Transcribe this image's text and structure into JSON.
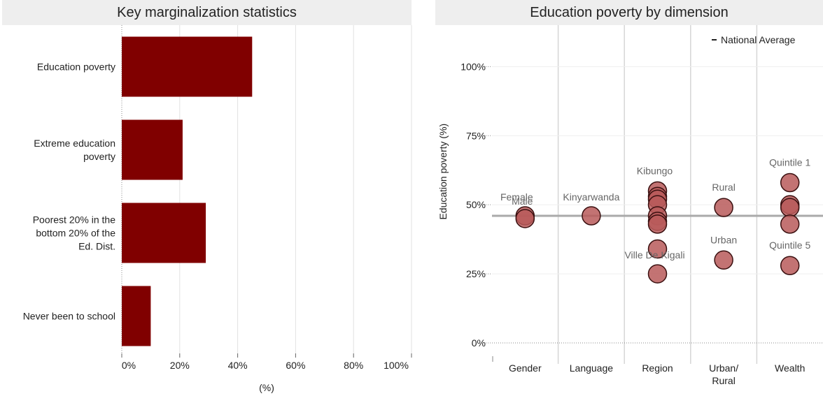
{
  "left_panel": {
    "title": "Key marginalization statistics"
  },
  "right_panel": {
    "title": "Education poverty by dimension"
  },
  "colors": {
    "bar": "#800000",
    "bubble_fill": "#b85a5a",
    "bubble_stroke": "#3a1010",
    "avg_line": "#aaaaaa",
    "grid": "#e2e2e2",
    "title_bg": "#eeeeee"
  },
  "chart_data": [
    {
      "type": "bar",
      "orientation": "horizontal",
      "title": "Key marginalization statistics",
      "categories": [
        "Education poverty",
        "Extreme education poverty",
        "Poorest 20% in the bottom 20% of the Ed. Dist.",
        "Never been to school"
      ],
      "category_label_lines": [
        [
          "Education poverty"
        ],
        [
          "Extreme education",
          "poverty"
        ],
        [
          "Poorest 20% in the",
          "bottom 20% of the",
          "Ed. Dist."
        ],
        [
          "Never been to school"
        ]
      ],
      "values": [
        45,
        21,
        29,
        10
      ],
      "xlim": [
        0,
        100
      ],
      "ticks": [
        0,
        20,
        40,
        60,
        80,
        100
      ],
      "tick_labels": [
        "0%",
        "20%",
        "40%",
        "60%",
        "80%",
        "100%"
      ],
      "xlabel": "(%)",
      "grid": true
    },
    {
      "type": "scatter",
      "title": "Education poverty by dimension",
      "ylabel": "Education poverty (%)",
      "ylim": [
        0,
        115
      ],
      "yticks": [
        0,
        25,
        50,
        75,
        100
      ],
      "ytick_labels": [
        "0%",
        "25%",
        "50%",
        "75%",
        "100%"
      ],
      "categories": [
        "Gender",
        "Language",
        "Region",
        "Urban/\nRural",
        "Wealth"
      ],
      "category_label_lines": [
        [
          "Gender"
        ],
        [
          "Language"
        ],
        [
          "Region"
        ],
        [
          "Urban/",
          "Rural"
        ],
        [
          "Wealth"
        ]
      ],
      "national_average": 46,
      "legend": {
        "label": "National Average",
        "position": "top-right"
      },
      "points": [
        {
          "category": 0,
          "value": 46,
          "label": "Female"
        },
        {
          "category": 0,
          "value": 45,
          "label": "Male"
        },
        {
          "category": 1,
          "value": 46,
          "label": "Kinyarwanda"
        },
        {
          "category": 2,
          "value": 55,
          "label": "Kibungo"
        },
        {
          "category": 2,
          "value": 53,
          "label": ""
        },
        {
          "category": 2,
          "value": 52,
          "label": ""
        },
        {
          "category": 2,
          "value": 50,
          "label": ""
        },
        {
          "category": 2,
          "value": 46,
          "label": ""
        },
        {
          "category": 2,
          "value": 44,
          "label": ""
        },
        {
          "category": 2,
          "value": 43,
          "label": ""
        },
        {
          "category": 2,
          "value": 34,
          "label": ""
        },
        {
          "category": 2,
          "value": 25,
          "label": "Ville De Kigali"
        },
        {
          "category": 3,
          "value": 49,
          "label": "Rural"
        },
        {
          "category": 3,
          "value": 30,
          "label": "Urban"
        },
        {
          "category": 4,
          "value": 58,
          "label": "Quintile 1"
        },
        {
          "category": 4,
          "value": 50,
          "label": ""
        },
        {
          "category": 4,
          "value": 49,
          "label": ""
        },
        {
          "category": 4,
          "value": 43,
          "label": ""
        },
        {
          "category": 4,
          "value": 28,
          "label": "Quintile 5"
        }
      ]
    }
  ]
}
